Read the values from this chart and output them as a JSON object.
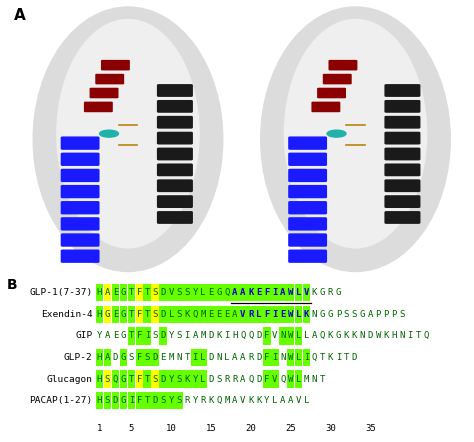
{
  "panel_A_label": "A",
  "panel_B_label": "B",
  "sequences": [
    {
      "name": "GLP-1(7-37)",
      "seq_chars": [
        "H",
        "A",
        "E",
        "G",
        "T",
        "F",
        "T",
        "S",
        "D",
        "V",
        "S",
        "S",
        "Y",
        "L",
        "E",
        "G",
        "Q",
        "A",
        "A",
        "K",
        "E",
        "F",
        "I",
        "A",
        "W",
        "L",
        "V",
        "K",
        "G",
        "R",
        "G"
      ],
      "highlights": {
        "yellow": [
          1,
          5,
          7
        ],
        "green": [
          0,
          2,
          3,
          4,
          6,
          8,
          9,
          10,
          11,
          12,
          13,
          14,
          15,
          16,
          17,
          18,
          19,
          20,
          21,
          22,
          23,
          24,
          25,
          26
        ]
      },
      "blue_bold": [
        17,
        18,
        19,
        20,
        21,
        22,
        23,
        24,
        25,
        26
      ],
      "underline_range": [
        17,
        26
      ]
    },
    {
      "name": "Exendin-4",
      "seq_chars": [
        "H",
        "G",
        "E",
        "G",
        "T",
        "F",
        "T",
        "S",
        "D",
        "L",
        "S",
        "K",
        "Q",
        "M",
        "E",
        "E",
        "E",
        "A",
        "V",
        "R",
        "L",
        "F",
        "I",
        "E",
        "W",
        "L",
        "K",
        "N",
        "G",
        "G",
        "P",
        "S",
        "S",
        "G",
        "A",
        "P",
        "P",
        "P",
        "S"
      ],
      "highlights": {
        "yellow": [
          1,
          5,
          7
        ],
        "green": [
          0,
          2,
          3,
          4,
          6,
          8,
          9,
          10,
          11,
          12,
          13,
          14,
          15,
          16,
          17,
          18,
          19,
          20,
          21,
          22,
          23,
          24,
          25,
          26
        ]
      },
      "blue_bold": [
        18,
        19,
        20,
        21,
        22,
        23,
        24,
        25,
        26
      ],
      "underline_range": []
    },
    {
      "name": "GIP",
      "seq_chars": [
        "Y",
        "A",
        "E",
        "G",
        "T",
        "F",
        "I",
        "S",
        "D",
        "Y",
        "S",
        "I",
        "A",
        "M",
        "D",
        "K",
        "I",
        "H",
        "Q",
        "Q",
        "D",
        "F",
        "V",
        "N",
        "W",
        "L",
        "L",
        "A",
        "Q",
        "K",
        "G",
        "K",
        "K",
        "N",
        "D",
        "W",
        "K",
        "H",
        "N",
        "I",
        "T",
        "Q"
      ],
      "highlights": {
        "yellow": [],
        "green": [
          4,
          5,
          6,
          8,
          21,
          23,
          24,
          25
        ]
      },
      "blue_bold": [],
      "underline_range": []
    },
    {
      "name": "GLP-2",
      "seq_chars": [
        "H",
        "A",
        "D",
        "G",
        "S",
        "F",
        "S",
        "D",
        "E",
        "M",
        "N",
        "T",
        "I",
        "L",
        "D",
        "N",
        "L",
        "A",
        "A",
        "R",
        "D",
        "F",
        "I",
        "N",
        "W",
        "L",
        "I",
        "Q",
        "T",
        "K",
        "I",
        "T",
        "D"
      ],
      "highlights": {
        "yellow": [],
        "green": [
          0,
          1,
          3,
          5,
          6,
          7,
          12,
          13,
          21,
          22,
          24,
          25,
          26
        ]
      },
      "blue_bold": [],
      "underline_range": []
    },
    {
      "name": "Glucagon",
      "seq_chars": [
        "H",
        "S",
        "Q",
        "G",
        "T",
        "F",
        "T",
        "S",
        "D",
        "Y",
        "S",
        "K",
        "Y",
        "L",
        "D",
        "S",
        "R",
        "R",
        "A",
        "Q",
        "D",
        "F",
        "V",
        "Q",
        "W",
        "L",
        "M",
        "N",
        "T"
      ],
      "highlights": {
        "yellow": [
          1,
          5,
          7
        ],
        "green": [
          0,
          2,
          3,
          4,
          6,
          8,
          9,
          10,
          11,
          12,
          13,
          21,
          22,
          24,
          25
        ]
      },
      "blue_bold": [],
      "underline_range": []
    },
    {
      "name": "PACAP(1-27)",
      "seq_chars": [
        "H",
        "S",
        "D",
        "G",
        "I",
        "F",
        "T",
        "D",
        "S",
        "Y",
        "S",
        "R",
        "Y",
        "R",
        "K",
        "Q",
        "M",
        "A",
        "V",
        "K",
        "K",
        "Y",
        "L",
        "A",
        "A",
        "V",
        "L"
      ],
      "highlights": {
        "yellow": [],
        "green": [
          0,
          1,
          2,
          3,
          4,
          5,
          6,
          7,
          8,
          9,
          10
        ]
      },
      "blue_bold": [],
      "underline_range": []
    }
  ],
  "tick_positions": [
    1,
    5,
    10,
    15,
    20,
    25,
    30,
    35
  ],
  "yellow_color": "#FFFF00",
  "green_color": "#66FF00",
  "blue_color": "#0000CC",
  "dark_green_text": "#006400",
  "black_color": "#000000",
  "bg_color": "#FFFFFF"
}
